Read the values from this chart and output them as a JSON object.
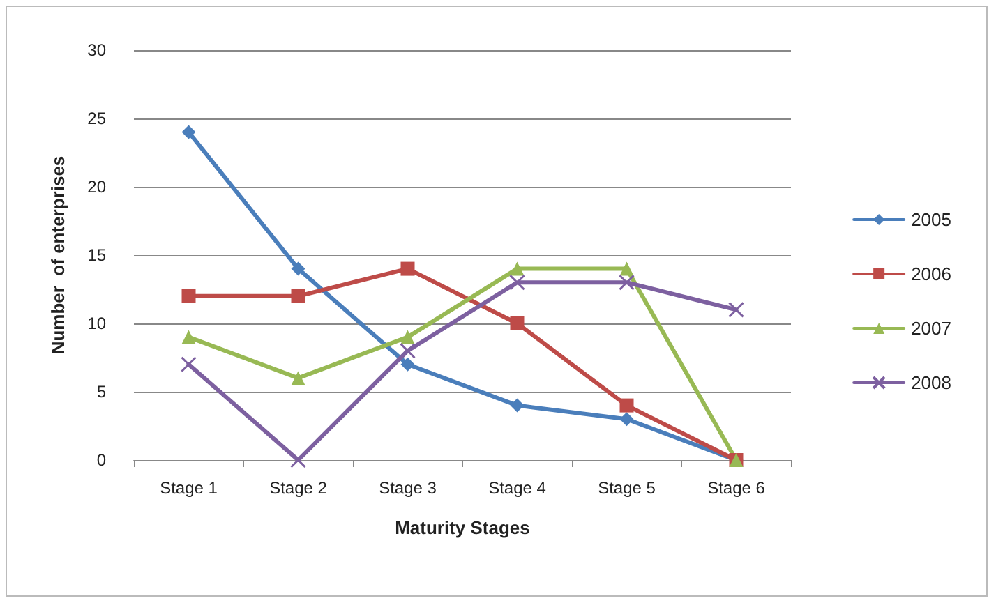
{
  "chart_data": {
    "type": "line",
    "xlabel": "Maturity Stages",
    "ylabel": "Number  of enterprises",
    "categories": [
      "Stage 1",
      "Stage 2",
      "Stage 3",
      "Stage 4",
      "Stage 5",
      "Stage 6"
    ],
    "series": [
      {
        "name": "2005",
        "color": "#4a7ebb",
        "marker": "diamond",
        "values": [
          24,
          14,
          7,
          4,
          3,
          0
        ]
      },
      {
        "name": "2006",
        "color": "#be4b48",
        "marker": "square",
        "values": [
          12,
          12,
          14,
          10,
          4,
          0
        ]
      },
      {
        "name": "2007",
        "color": "#98b954",
        "marker": "triangle",
        "values": [
          9,
          6,
          9,
          14,
          14,
          0
        ]
      },
      {
        "name": "2008",
        "color": "#7d60a0",
        "marker": "cross",
        "values": [
          7,
          0,
          8,
          13,
          13,
          11
        ]
      }
    ],
    "ylim": [
      0,
      30
    ],
    "yticks": [
      0,
      5,
      10,
      15,
      20,
      25,
      30
    ],
    "grid": "y",
    "legend": "right"
  }
}
